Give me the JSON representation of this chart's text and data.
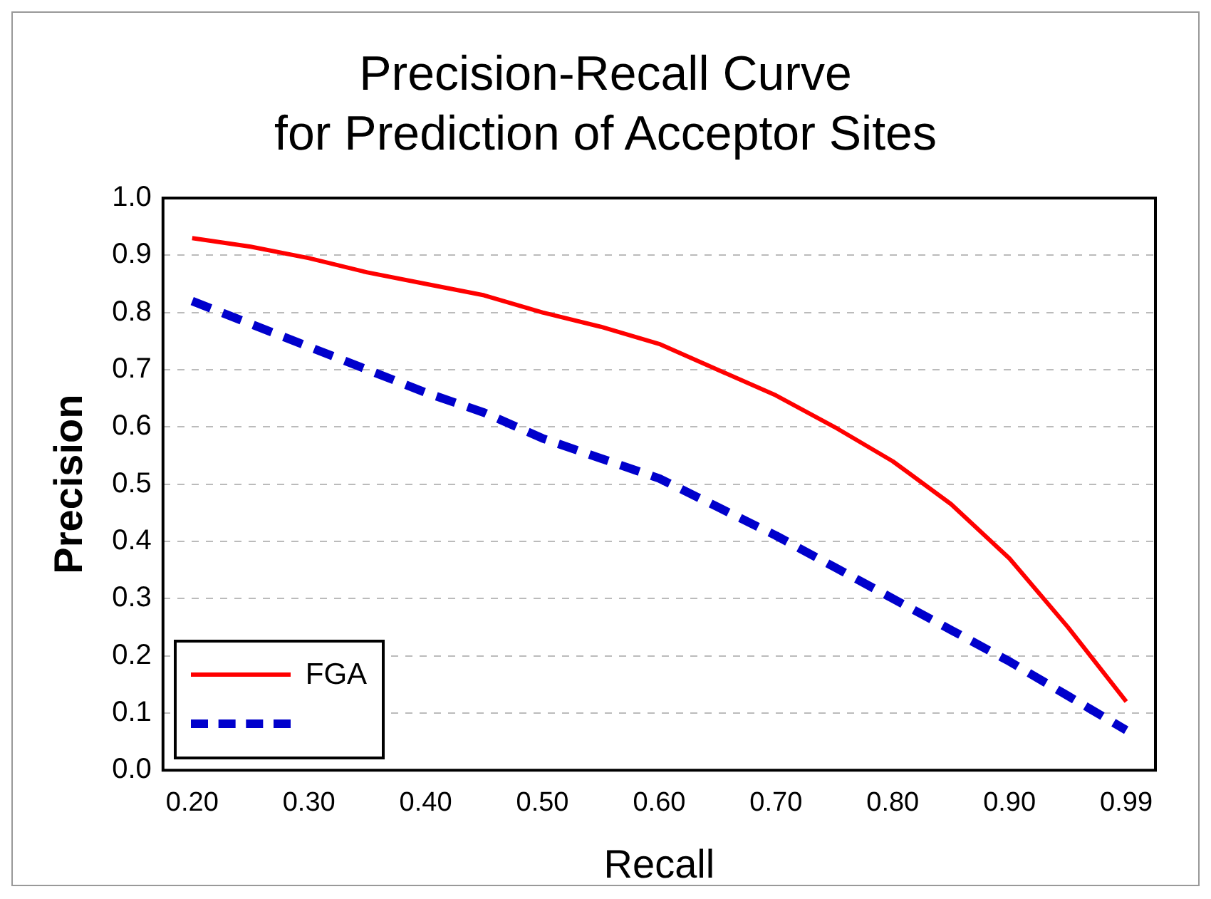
{
  "chart_data": {
    "type": "line",
    "title": "Precision-Recall Curve\nfor Prediction of Acceptor Sites",
    "xlabel": "Recall",
    "ylabel": "Precision",
    "categories": [
      "0.20",
      null,
      "0.30",
      null,
      "0.40",
      null,
      "0.50",
      null,
      "0.60",
      null,
      "0.70",
      null,
      "0.80",
      null,
      "0.90",
      null,
      "0.99"
    ],
    "series": [
      {
        "name": "FGA",
        "color": "#ff0000",
        "line_style": "solid",
        "values": [
          0.93,
          0.915,
          0.895,
          0.87,
          0.85,
          0.83,
          0.8,
          0.775,
          0.745,
          0.7,
          0.655,
          0.6,
          0.54,
          0.465,
          0.37,
          0.25,
          0.12
        ]
      },
      {
        "color": "#0000cc",
        "line_style": "dashed",
        "values": [
          0.82,
          0.78,
          0.74,
          0.7,
          0.66,
          0.625,
          0.58,
          0.545,
          0.51,
          0.46,
          0.41,
          0.355,
          0.3,
          0.245,
          0.19,
          0.13,
          0.07
        ]
      }
    ],
    "ylim": [
      0,
      1
    ],
    "yticks": [
      {
        "value": 0,
        "label": "0.0"
      },
      0.1,
      0.2,
      0.3,
      0.4,
      0.5,
      0.6,
      0.7,
      0.8,
      0.9,
      {
        "value": 1,
        "label": "1.0"
      }
    ],
    "grid": "y",
    "legend": "bottom left",
    "marker": "none"
  }
}
